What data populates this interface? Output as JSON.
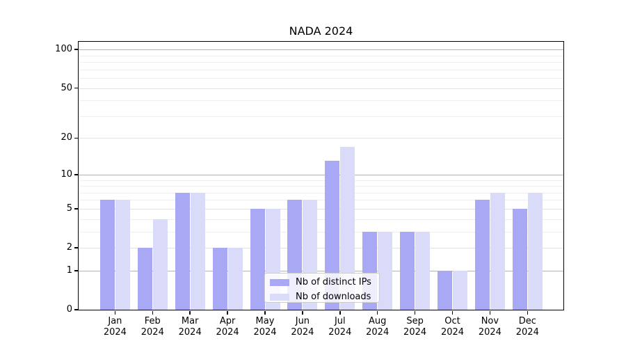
{
  "title": "NADA 2024",
  "chart_data": {
    "type": "bar",
    "title": "NADA 2024",
    "categories": [
      "Jan",
      "Feb",
      "Mar",
      "Apr",
      "May",
      "Jun",
      "Jul",
      "Aug",
      "Sep",
      "Oct",
      "Nov",
      "Dec"
    ],
    "year_label": "2024",
    "series": [
      {
        "name": "Nb of distinct IPs",
        "color": "#a8a8f4",
        "values": [
          6,
          2,
          7,
          2,
          5,
          6,
          13,
          3,
          3,
          1,
          6,
          5
        ]
      },
      {
        "name": "Nb of downloads",
        "color": "#dadaf9",
        "values": [
          6,
          4,
          7,
          2,
          5,
          6,
          17,
          3,
          3,
          1,
          7,
          7
        ]
      }
    ],
    "y_scale": "log1p",
    "y_ticks": [
      0,
      1,
      2,
      5,
      10,
      20,
      50,
      100
    ],
    "y_major_gridlines": [
      1,
      10,
      100
    ],
    "y_mid_gridlines": [
      2,
      5,
      20,
      50
    ],
    "y_minor_gridlines": [
      3,
      4,
      6,
      7,
      8,
      9,
      30,
      40,
      60,
      70,
      80,
      90
    ],
    "ylim": [
      0,
      115
    ],
    "grid": true,
    "legend_position": "lower-center",
    "colors": {
      "ips_bar": "#a8a8f4",
      "downloads_bar": "#dadaf9",
      "grid_major": "#b3b3b3",
      "grid_mid": "#e1e1e1",
      "grid_minor": "#efefef",
      "axis": "#000000",
      "legend_border": "#cccccc"
    }
  }
}
